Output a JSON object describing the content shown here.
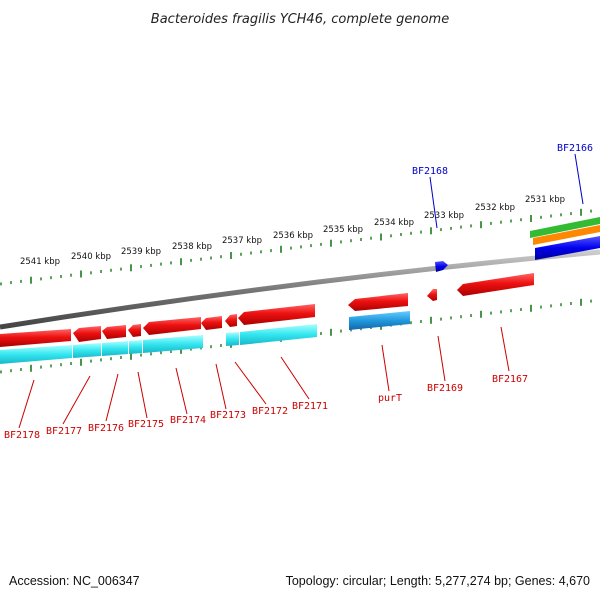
{
  "title": "Bacteroides fragilis YCH46, complete genome",
  "colors": {
    "backbone": "#888888",
    "tick": "#1a7a1a",
    "forward_gene": "#ee1111",
    "cds_cyan": "#33e6f0",
    "cds_blue": "#33a8e0",
    "label_red": "#cc0000",
    "label_blue": "#0000cc",
    "track_green": "#33bb33",
    "track_orange": "#ff8800",
    "track_blue": "#0000ee"
  },
  "scale_labels": [
    "2541 kbp",
    "2540 kbp",
    "2539 kbp",
    "2538 kbp",
    "2537 kbp",
    "2536 kbp",
    "2535 kbp",
    "2534 kbp",
    "2533 kbp",
    "2532 kbp",
    "2531 kbp"
  ],
  "gene_labels": [
    {
      "name": "BF2178",
      "color": "red"
    },
    {
      "name": "BF2177",
      "color": "red"
    },
    {
      "name": "BF2176",
      "color": "red"
    },
    {
      "name": "BF2175",
      "color": "red"
    },
    {
      "name": "BF2174",
      "color": "red"
    },
    {
      "name": "BF2173",
      "color": "red"
    },
    {
      "name": "BF2172",
      "color": "red"
    },
    {
      "name": "BF2171",
      "color": "red"
    },
    {
      "name": "purT",
      "color": "red"
    },
    {
      "name": "BF2169",
      "color": "red"
    },
    {
      "name": "BF2167",
      "color": "red"
    },
    {
      "name": "BF2168",
      "color": "blue"
    },
    {
      "name": "BF2166",
      "color": "blue"
    }
  ],
  "footer": {
    "accession": "Accession: NC_006347",
    "summary": "Topology: circular; Length: 5,277,274 bp; Genes: 4,670"
  }
}
